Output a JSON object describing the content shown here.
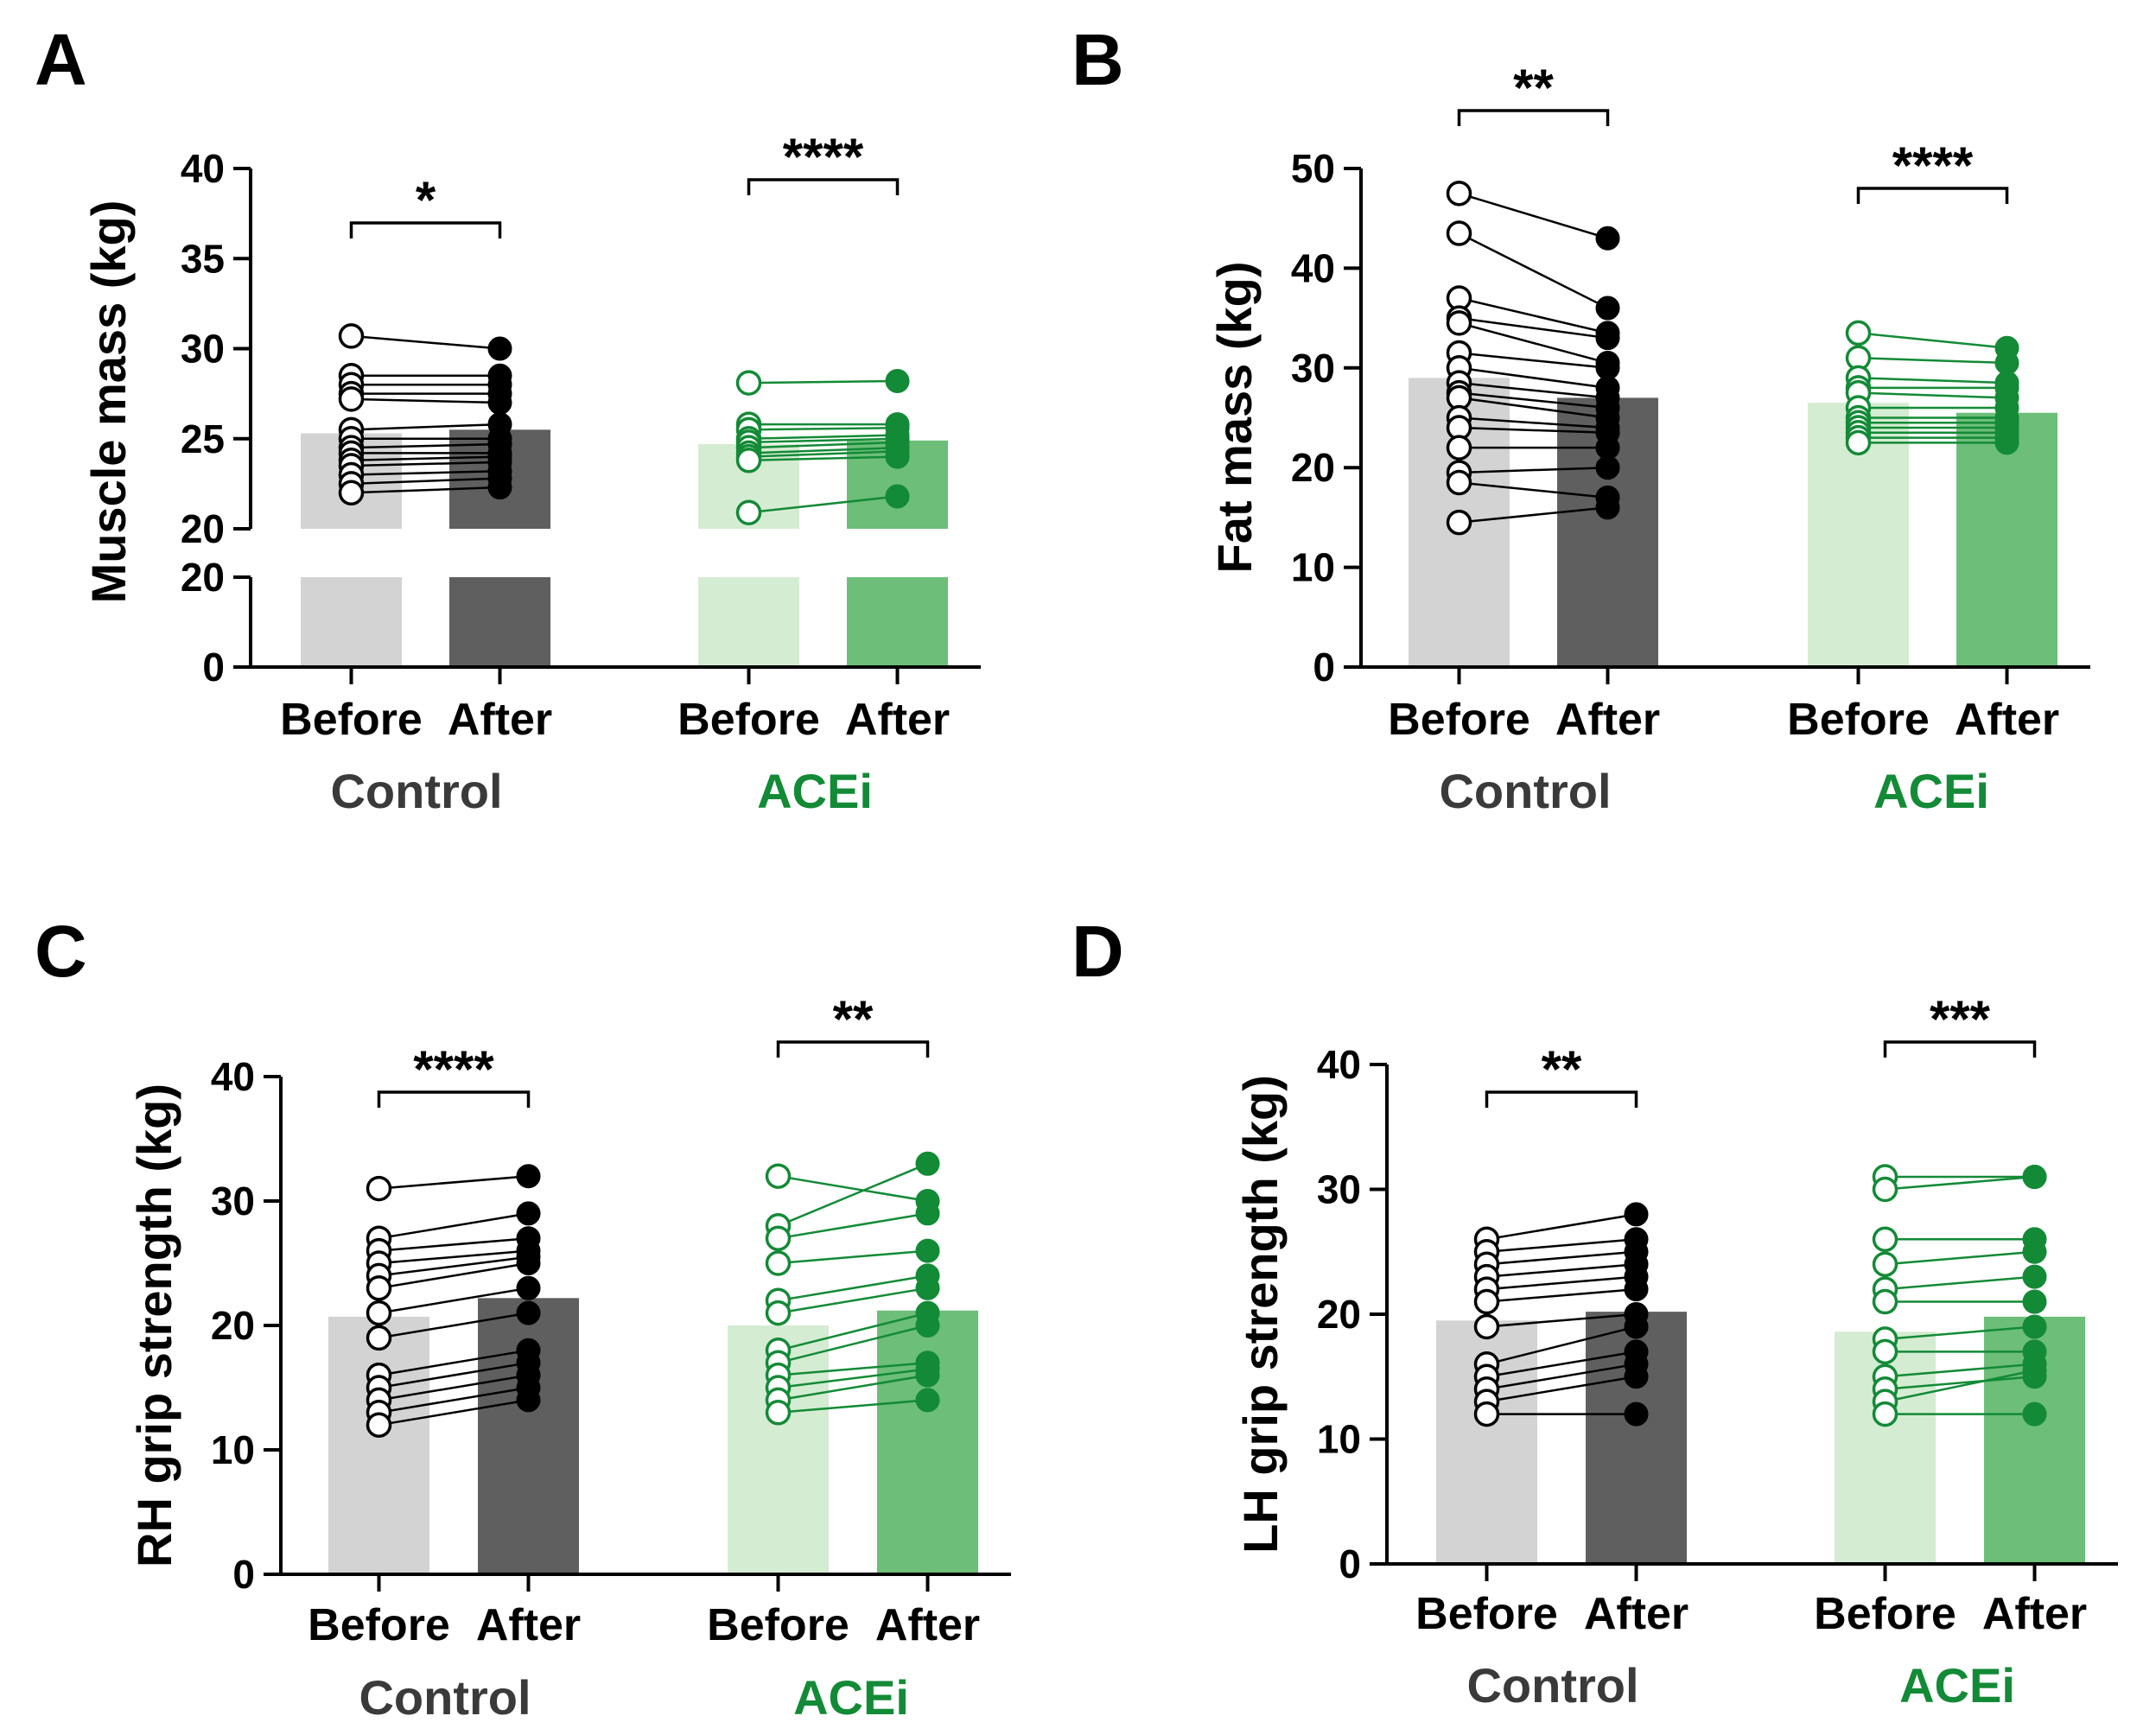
{
  "colors": {
    "control_before_bar": "#d3d3d3",
    "control_after_bar": "#5f5f5f",
    "acei_before_bar": "#d4ecd2",
    "acei_after_bar": "#6cbe79",
    "control_marker": "#000000",
    "acei_marker": "#138a36",
    "control_label": "#3a3a3a",
    "acei_label": "#138a36"
  },
  "chart_data": [
    {
      "type": "bar",
      "panel": "A",
      "ylabel": "Muscle mass (kg)",
      "ylim": [
        0,
        40
      ],
      "axis_break": {
        "lower": [
          0,
          20
        ],
        "upper": [
          20,
          40
        ]
      },
      "lower_ticks": [
        "0",
        "20"
      ],
      "upper_ticks": [
        "20",
        "25",
        "30",
        "35",
        "40"
      ],
      "categories": [
        "Before",
        "After",
        "Before",
        "After"
      ],
      "groups": [
        "Control",
        "ACEi"
      ],
      "series": [
        {
          "name": "mean",
          "values": [
            25.3,
            25.5,
            24.7,
            24.9
          ]
        }
      ],
      "paired": [
        {
          "group": "Control",
          "before": [
            30.7,
            28.5,
            28.0,
            27.5,
            27.2,
            25.5,
            25.0,
            24.5,
            24.2,
            23.8,
            23.5,
            23.0,
            22.5,
            22.0
          ],
          "after": [
            30.0,
            28.5,
            28.0,
            27.5,
            27.0,
            25.8,
            25.0,
            24.7,
            24.2,
            24.0,
            23.7,
            23.2,
            22.8,
            22.3
          ]
        },
        {
          "group": "ACEi",
          "before": [
            28.1,
            25.8,
            25.5,
            25.0,
            24.8,
            24.5,
            24.2,
            24.0,
            23.8,
            20.9
          ],
          "after": [
            28.2,
            25.8,
            25.6,
            25.2,
            25.0,
            24.8,
            24.5,
            24.3,
            24.0,
            21.8
          ]
        }
      ],
      "significance": [
        "*",
        "****"
      ]
    },
    {
      "type": "bar",
      "panel": "B",
      "ylabel": "Fat mass (kg)",
      "ylim": [
        0,
        50
      ],
      "ticks": [
        "0",
        "10",
        "20",
        "30",
        "40",
        "50"
      ],
      "categories": [
        "Before",
        "After",
        "Before",
        "After"
      ],
      "groups": [
        "Control",
        "ACEi"
      ],
      "series": [
        {
          "name": "mean",
          "values": [
            29.0,
            27.0,
            26.5,
            25.5
          ]
        }
      ],
      "paired": [
        {
          "group": "Control",
          "before": [
            47.5,
            43.5,
            37.0,
            35.0,
            34.5,
            31.5,
            30.0,
            28.5,
            27.5,
            27.0,
            25.0,
            24.0,
            22.0,
            19.5,
            18.5,
            14.5
          ],
          "after": [
            43.0,
            36.0,
            33.5,
            33.0,
            30.5,
            30.0,
            28.0,
            27.0,
            26.0,
            25.0,
            24.0,
            23.5,
            22.0,
            20.0,
            17.0,
            16.0
          ]
        },
        {
          "group": "ACEi",
          "before": [
            33.5,
            31.0,
            29.0,
            28.0,
            27.5,
            26.0,
            25.0,
            24.5,
            24.0,
            23.5,
            23.0,
            22.5
          ],
          "after": [
            32.0,
            30.5,
            28.5,
            28.0,
            27.0,
            26.0,
            25.0,
            24.5,
            24.0,
            23.5,
            23.0,
            22.5
          ]
        }
      ],
      "significance": [
        "**",
        "****"
      ]
    },
    {
      "type": "bar",
      "panel": "C",
      "ylabel": "RH grip strength (kg)",
      "ylim": [
        0,
        40
      ],
      "ticks": [
        "0",
        "10",
        "20",
        "30",
        "40"
      ],
      "categories": [
        "Before",
        "After",
        "Before",
        "After"
      ],
      "groups": [
        "Control",
        "ACEi"
      ],
      "series": [
        {
          "name": "mean",
          "values": [
            20.7,
            22.2,
            20.0,
            21.2
          ]
        }
      ],
      "paired": [
        {
          "group": "Control",
          "before": [
            31,
            27,
            26,
            25,
            24,
            23,
            21,
            19,
            16,
            15,
            14,
            13,
            12
          ],
          "after": [
            32,
            29,
            27,
            26,
            25.5,
            25,
            23,
            21,
            18,
            17,
            16,
            15,
            14
          ]
        },
        {
          "group": "ACEi",
          "before": [
            32,
            28,
            27,
            25,
            22,
            21,
            18,
            17,
            16,
            15,
            14,
            13
          ],
          "after": [
            30,
            33,
            29,
            26,
            24,
            23,
            21,
            20,
            17,
            16.5,
            16,
            14
          ]
        }
      ],
      "significance": [
        "****",
        "**"
      ]
    },
    {
      "type": "bar",
      "panel": "D",
      "ylabel": "LH grip strength (kg)",
      "ylim": [
        0,
        40
      ],
      "ticks": [
        "0",
        "10",
        "20",
        "30",
        "40"
      ],
      "categories": [
        "Before",
        "After",
        "Before",
        "After"
      ],
      "groups": [
        "Control",
        "ACEi"
      ],
      "series": [
        {
          "name": "mean",
          "values": [
            19.5,
            20.2,
            18.6,
            19.8
          ]
        }
      ],
      "paired": [
        {
          "group": "Control",
          "before": [
            26,
            25,
            24,
            23,
            22,
            21,
            19,
            16,
            15,
            14,
            13,
            12
          ],
          "after": [
            28,
            26,
            25,
            24,
            23,
            22,
            20,
            19,
            17,
            16,
            15,
            12
          ]
        },
        {
          "group": "ACEi",
          "before": [
            31,
            30,
            26,
            24,
            22,
            21,
            18,
            17,
            15,
            14,
            13,
            12
          ],
          "after": [
            31,
            31,
            26,
            25,
            23,
            21,
            19,
            17,
            16,
            15,
            15.5,
            12
          ]
        }
      ],
      "significance": [
        "**",
        "***"
      ]
    }
  ]
}
